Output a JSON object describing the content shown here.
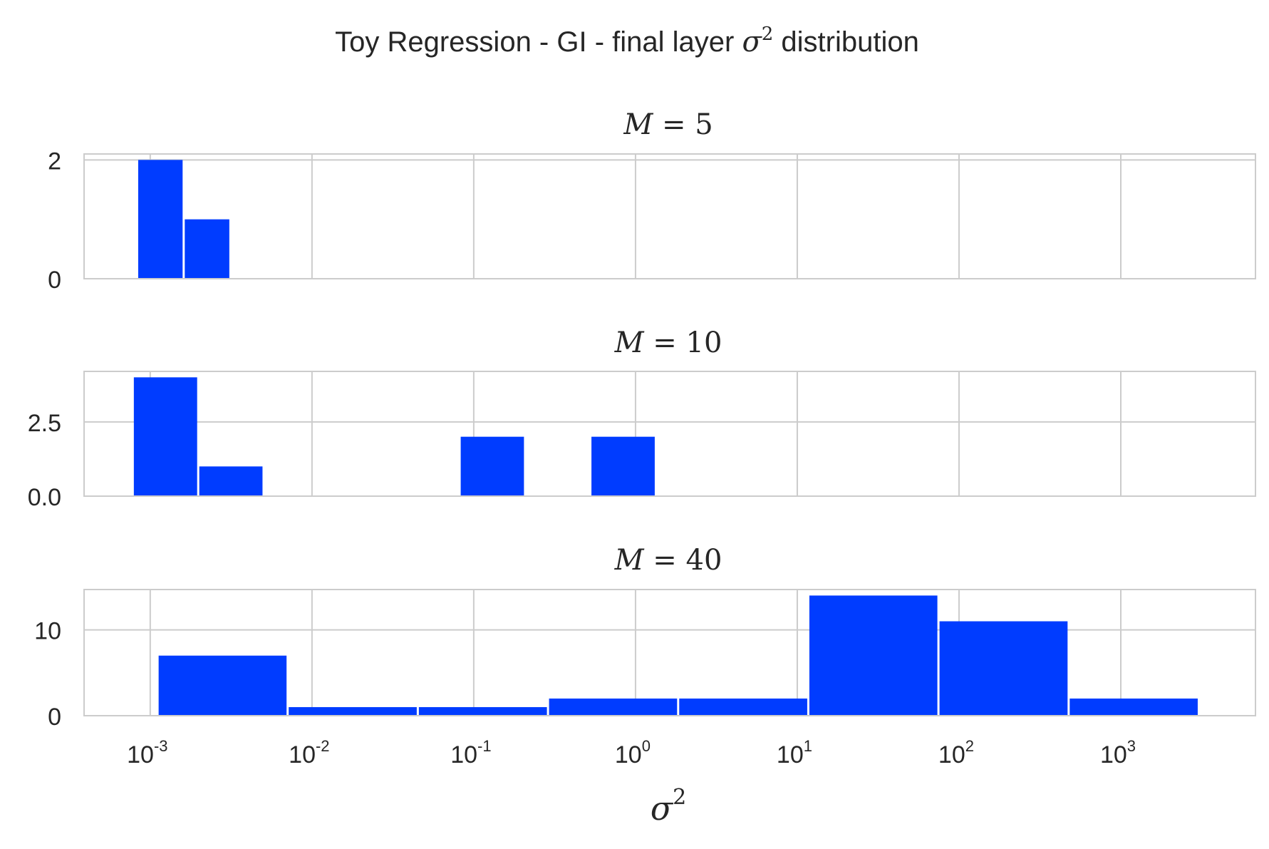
{
  "chart_data": {
    "type": "bar",
    "title_prefix": "Toy Regression - GI - final layer ",
    "title_math": "σ",
    "title_math_sup": "2",
    "title_suffix": " distribution",
    "xlabel_math": "σ",
    "xlabel_sup": "2",
    "x_scale": "log",
    "x_ticks": [
      {
        "base": "10",
        "exp": "-3",
        "value": 0.001
      },
      {
        "base": "10",
        "exp": "-2",
        "value": 0.01
      },
      {
        "base": "10",
        "exp": "-1",
        "value": 0.1
      },
      {
        "base": "10",
        "exp": "0",
        "value": 1
      },
      {
        "base": "10",
        "exp": "1",
        "value": 10
      },
      {
        "base": "10",
        "exp": "2",
        "value": 100
      },
      {
        "base": "10",
        "exp": "3",
        "value": 1000
      }
    ],
    "xlim": [
      0.00039,
      6800
    ],
    "grid": true,
    "subplots": [
      {
        "title_var": "M",
        "title_eq": "=",
        "title_val": "5",
        "ylim": [
          0,
          2.1
        ],
        "y_ticks": [
          {
            "value": 0,
            "label": "0"
          },
          {
            "value": 2,
            "label": "2"
          }
        ],
        "bins": [
          {
            "x0": 0.00083,
            "x1": 0.00161,
            "count": 2
          },
          {
            "x0": 0.00161,
            "x1": 0.00313,
            "count": 1
          }
        ]
      },
      {
        "title_var": "M",
        "title_eq": "=",
        "title_val": "10",
        "ylim": [
          0,
          4.2
        ],
        "y_ticks": [
          {
            "value": 0,
            "label": "0.0"
          },
          {
            "value": 2.5,
            "label": "2.5"
          }
        ],
        "bins": [
          {
            "x0": 0.00078,
            "x1": 0.00198,
            "count": 4
          },
          {
            "x0": 0.00198,
            "x1": 0.00502,
            "count": 1
          },
          {
            "x0": 0.00502,
            "x1": 0.0127,
            "count": 0
          },
          {
            "x0": 0.0127,
            "x1": 0.0323,
            "count": 0
          },
          {
            "x0": 0.0323,
            "x1": 0.0818,
            "count": 0
          },
          {
            "x0": 0.0818,
            "x1": 0.2075,
            "count": 2
          },
          {
            "x0": 0.2075,
            "x1": 0.526,
            "count": 0
          },
          {
            "x0": 0.526,
            "x1": 1.335,
            "count": 2
          }
        ]
      },
      {
        "title_var": "M",
        "title_eq": "=",
        "title_val": "40",
        "ylim": [
          0,
          14.7
        ],
        "y_ticks": [
          {
            "value": 0,
            "label": "0"
          },
          {
            "value": 10,
            "label": "10"
          }
        ],
        "bins": [
          {
            "x0": 0.00111,
            "x1": 0.00707,
            "count": 7
          },
          {
            "x0": 0.00707,
            "x1": 0.0451,
            "count": 1
          },
          {
            "x0": 0.0451,
            "x1": 0.2877,
            "count": 1
          },
          {
            "x0": 0.2877,
            "x1": 1.835,
            "count": 2
          },
          {
            "x0": 1.835,
            "x1": 11.7,
            "count": 2
          },
          {
            "x0": 11.7,
            "x1": 74.6,
            "count": 14
          },
          {
            "x0": 74.6,
            "x1": 476,
            "count": 11
          },
          {
            "x0": 476,
            "x1": 3035,
            "count": 2
          }
        ]
      }
    ],
    "colors": {
      "bar": "#003cff",
      "grid": "#cccccc",
      "spine": "#cccccc",
      "text": "#262626"
    }
  }
}
